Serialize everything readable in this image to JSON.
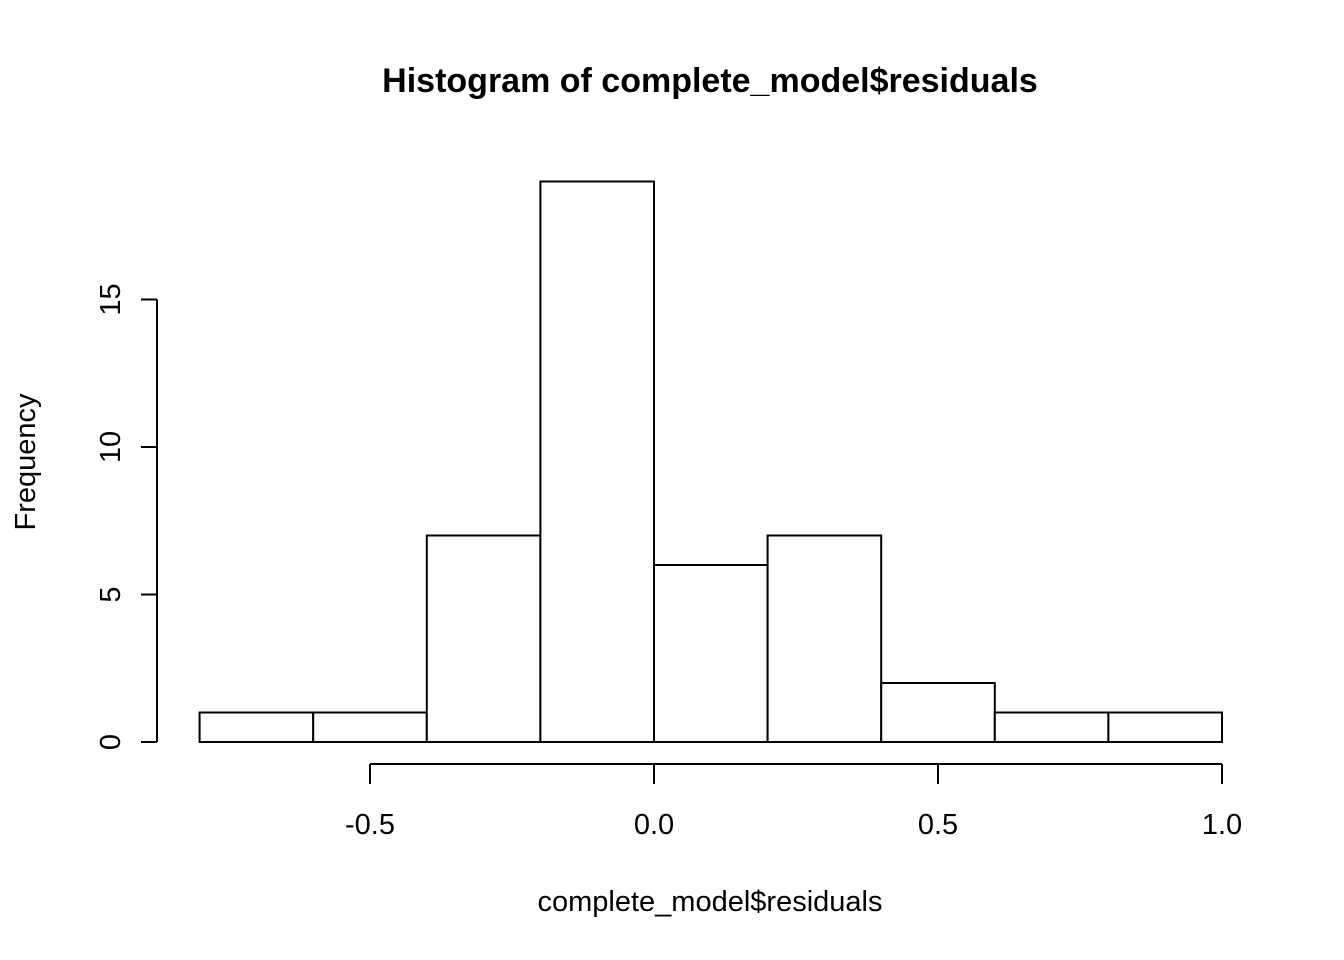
{
  "chart_data": {
    "type": "bar",
    "subtype": "histogram",
    "title": "Histogram of complete_model$residuals",
    "xlabel": "complete_model$residuals",
    "ylabel": "Frequency",
    "bins": [
      {
        "from": -0.8,
        "to": -0.6,
        "count": 1
      },
      {
        "from": -0.6,
        "to": -0.4,
        "count": 1
      },
      {
        "from": -0.4,
        "to": -0.2,
        "count": 7
      },
      {
        "from": -0.2,
        "to": 0.0,
        "count": 19
      },
      {
        "from": 0.0,
        "to": 0.2,
        "count": 6
      },
      {
        "from": 0.2,
        "to": 0.4,
        "count": 7
      },
      {
        "from": 0.4,
        "to": 0.6,
        "count": 2
      },
      {
        "from": 0.6,
        "to": 0.8,
        "count": 1
      },
      {
        "from": 0.8,
        "to": 1.0,
        "count": 1
      }
    ],
    "xticks": [
      -0.5,
      0.0,
      0.5,
      1.0
    ],
    "xtick_labels": [
      "-0.5",
      "0.0",
      "0.5",
      "1.0"
    ],
    "yticks": [
      0,
      5,
      10,
      15
    ],
    "ytick_labels": [
      "0",
      "5",
      "10",
      "15"
    ],
    "xlim": [
      -0.8,
      1.0
    ],
    "ylim": [
      0,
      19
    ],
    "grid": false,
    "legend": "none",
    "bar_fill": "#ffffff",
    "bar_stroke": "#000000"
  }
}
